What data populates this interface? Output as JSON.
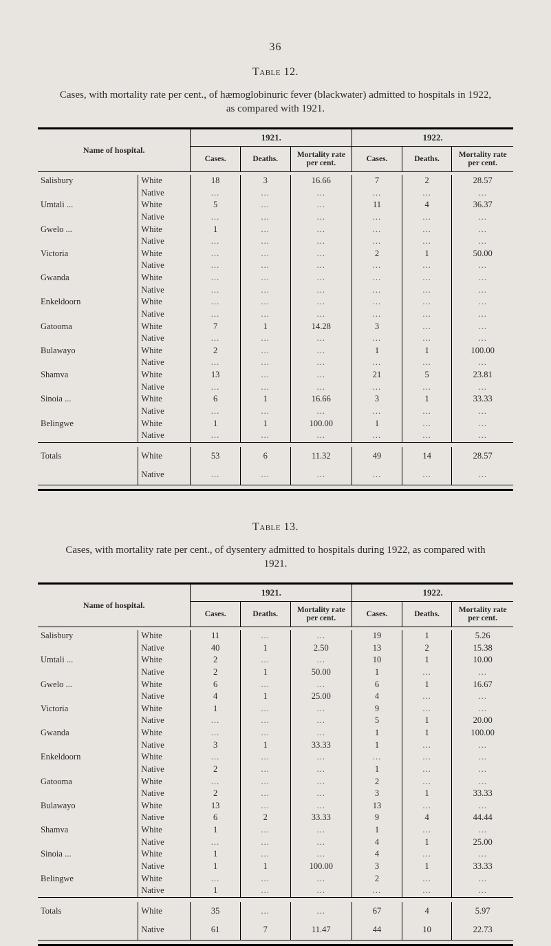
{
  "page_number": "36",
  "table12": {
    "label": "Table 12.",
    "caption": "Cases, with mortality rate per cent., of hæmoglobinuric fever (blackwater) admitted to hospitals in 1922, as compared with 1921.",
    "head": {
      "name": "Name of hospital.",
      "y1921": "1921.",
      "y1922": "1922.",
      "cases": "Cases.",
      "deaths": "Deaths.",
      "rate": "Mortality rate per cent."
    },
    "hospitals": [
      {
        "name": "Salisbury",
        "rows": [
          {
            "type": "White",
            "c1": "18",
            "d1": "3",
            "r1": "16.66",
            "c2": "7",
            "d2": "2",
            "r2": "28.57"
          },
          {
            "type": "Native",
            "c1": "...",
            "d1": "...",
            "r1": "...",
            "c2": "...",
            "d2": "...",
            "r2": "..."
          }
        ]
      },
      {
        "name": "Umtali ...",
        "rows": [
          {
            "type": "White",
            "c1": "5",
            "d1": "...",
            "r1": "...",
            "c2": "11",
            "d2": "4",
            "r2": "36.37"
          },
          {
            "type": "Native",
            "c1": "...",
            "d1": "...",
            "r1": "...",
            "c2": "...",
            "d2": "...",
            "r2": "..."
          }
        ]
      },
      {
        "name": "Gwelo ...",
        "rows": [
          {
            "type": "White",
            "c1": "1",
            "d1": "...",
            "r1": "...",
            "c2": "...",
            "d2": "...",
            "r2": "..."
          },
          {
            "type": "Native",
            "c1": "...",
            "d1": "...",
            "r1": "...",
            "c2": "...",
            "d2": "...",
            "r2": "..."
          }
        ]
      },
      {
        "name": "Victoria",
        "rows": [
          {
            "type": "White",
            "c1": "...",
            "d1": "...",
            "r1": "...",
            "c2": "2",
            "d2": "1",
            "r2": "50.00"
          },
          {
            "type": "Native",
            "c1": "...",
            "d1": "...",
            "r1": "...",
            "c2": "...",
            "d2": "...",
            "r2": "..."
          }
        ]
      },
      {
        "name": "Gwanda",
        "rows": [
          {
            "type": "White",
            "c1": "...",
            "d1": "...",
            "r1": "...",
            "c2": "...",
            "d2": "...",
            "r2": "..."
          },
          {
            "type": "Native",
            "c1": "...",
            "d1": "...",
            "r1": "...",
            "c2": "...",
            "d2": "...",
            "r2": "..."
          }
        ]
      },
      {
        "name": "Enkeldoorn",
        "rows": [
          {
            "type": "White",
            "c1": "...",
            "d1": "...",
            "r1": "...",
            "c2": "...",
            "d2": "...",
            "r2": "..."
          },
          {
            "type": "Native",
            "c1": "...",
            "d1": "...",
            "r1": "...",
            "c2": "...",
            "d2": "...",
            "r2": "..."
          }
        ]
      },
      {
        "name": "Gatooma",
        "rows": [
          {
            "type": "White",
            "c1": "7",
            "d1": "1",
            "r1": "14.28",
            "c2": "3",
            "d2": "...",
            "r2": "..."
          },
          {
            "type": "Native",
            "c1": "...",
            "d1": "...",
            "r1": "...",
            "c2": "...",
            "d2": "...",
            "r2": "..."
          }
        ]
      },
      {
        "name": "Bulawayo",
        "rows": [
          {
            "type": "White",
            "c1": "2",
            "d1": "...",
            "r1": "...",
            "c2": "1",
            "d2": "1",
            "r2": "100.00"
          },
          {
            "type": "Native",
            "c1": "...",
            "d1": "...",
            "r1": "...",
            "c2": "...",
            "d2": "...",
            "r2": "..."
          }
        ]
      },
      {
        "name": "Shamva",
        "rows": [
          {
            "type": "White",
            "c1": "13",
            "d1": "...",
            "r1": "...",
            "c2": "21",
            "d2": "5",
            "r2": "23.81"
          },
          {
            "type": "Native",
            "c1": "...",
            "d1": "...",
            "r1": "...",
            "c2": "...",
            "d2": "...",
            "r2": "..."
          }
        ]
      },
      {
        "name": "Sinoia ...",
        "rows": [
          {
            "type": "White",
            "c1": "6",
            "d1": "1",
            "r1": "16.66",
            "c2": "3",
            "d2": "1",
            "r2": "33.33"
          },
          {
            "type": "Native",
            "c1": "...",
            "d1": "...",
            "r1": "...",
            "c2": "...",
            "d2": "...",
            "r2": "..."
          }
        ]
      },
      {
        "name": "Belingwe",
        "rows": [
          {
            "type": "White",
            "c1": "1",
            "d1": "1",
            "r1": "100.00",
            "c2": "1",
            "d2": "...",
            "r2": "..."
          },
          {
            "type": "Native",
            "c1": "...",
            "d1": "...",
            "r1": "...",
            "c2": "...",
            "d2": "...",
            "r2": "..."
          }
        ]
      }
    ],
    "totals": {
      "label": "Totals",
      "rows": [
        {
          "type": "White",
          "c1": "53",
          "d1": "6",
          "r1": "11.32",
          "c2": "49",
          "d2": "14",
          "r2": "28.57"
        },
        {
          "type": "Native",
          "c1": "...",
          "d1": "...",
          "r1": "...",
          "c2": "...",
          "d2": "...",
          "r2": "..."
        }
      ]
    }
  },
  "table13": {
    "label": "Table 13.",
    "caption": "Cases, with mortality rate per cent., of dysentery admitted to hospitals during 1922, as compared with 1921.",
    "head": {
      "name": "Name of hospital.",
      "y1921": "1921.",
      "y1922": "1922.",
      "cases": "Cases.",
      "deaths": "Deaths.",
      "rate": "Mortality rate per cent."
    },
    "hospitals": [
      {
        "name": "Salisbury",
        "rows": [
          {
            "type": "White",
            "c1": "11",
            "d1": "...",
            "r1": "...",
            "c2": "19",
            "d2": "1",
            "r2": "5.26"
          },
          {
            "type": "Native",
            "c1": "40",
            "d1": "1",
            "r1": "2.50",
            "c2": "13",
            "d2": "2",
            "r2": "15.38"
          }
        ]
      },
      {
        "name": "Umtali ...",
        "rows": [
          {
            "type": "White",
            "c1": "2",
            "d1": "...",
            "r1": "...",
            "c2": "10",
            "d2": "1",
            "r2": "10.00"
          },
          {
            "type": "Native",
            "c1": "2",
            "d1": "1",
            "r1": "50.00",
            "c2": "1",
            "d2": "...",
            "r2": "..."
          }
        ]
      },
      {
        "name": "Gwelo ...",
        "rows": [
          {
            "type": "White",
            "c1": "6",
            "d1": "...",
            "r1": "...",
            "c2": "6",
            "d2": "1",
            "r2": "16.67"
          },
          {
            "type": "Native",
            "c1": "4",
            "d1": "1",
            "r1": "25.00",
            "c2": "4",
            "d2": "...",
            "r2": "..."
          }
        ]
      },
      {
        "name": "Victoria",
        "rows": [
          {
            "type": "White",
            "c1": "1",
            "d1": "...",
            "r1": "...",
            "c2": "9",
            "d2": "...",
            "r2": "..."
          },
          {
            "type": "Native",
            "c1": "...",
            "d1": "...",
            "r1": "...",
            "c2": "5",
            "d2": "1",
            "r2": "20.00"
          }
        ]
      },
      {
        "name": "Gwanda",
        "rows": [
          {
            "type": "White",
            "c1": "...",
            "d1": "...",
            "r1": "...",
            "c2": "1",
            "d2": "1",
            "r2": "100.00"
          },
          {
            "type": "Native",
            "c1": "3",
            "d1": "1",
            "r1": "33.33",
            "c2": "1",
            "d2": "...",
            "r2": "..."
          }
        ]
      },
      {
        "name": "Enkeldoorn",
        "rows": [
          {
            "type": "White",
            "c1": "...",
            "d1": "...",
            "r1": "...",
            "c2": "...",
            "d2": "...",
            "r2": "..."
          },
          {
            "type": "Native",
            "c1": "2",
            "d1": "...",
            "r1": "...",
            "c2": "1",
            "d2": "...",
            "r2": "..."
          }
        ]
      },
      {
        "name": "Gatooma",
        "rows": [
          {
            "type": "White",
            "c1": "...",
            "d1": "...",
            "r1": "...",
            "c2": "2",
            "d2": "...",
            "r2": "..."
          },
          {
            "type": "Native",
            "c1": "2",
            "d1": "...",
            "r1": "...",
            "c2": "3",
            "d2": "1",
            "r2": "33.33"
          }
        ]
      },
      {
        "name": "Bulawayo",
        "rows": [
          {
            "type": "White",
            "c1": "13",
            "d1": "...",
            "r1": "...",
            "c2": "13",
            "d2": "...",
            "r2": "..."
          },
          {
            "type": "Native",
            "c1": "6",
            "d1": "2",
            "r1": "33.33",
            "c2": "9",
            "d2": "4",
            "r2": "44.44"
          }
        ]
      },
      {
        "name": "Shamva",
        "rows": [
          {
            "type": "White",
            "c1": "1",
            "d1": "...",
            "r1": "...",
            "c2": "1",
            "d2": "...",
            "r2": "..."
          },
          {
            "type": "Native",
            "c1": "...",
            "d1": "...",
            "r1": "...",
            "c2": "4",
            "d2": "1",
            "r2": "25.00"
          }
        ]
      },
      {
        "name": "Sinoia ...",
        "rows": [
          {
            "type": "White",
            "c1": "1",
            "d1": "...",
            "r1": "...",
            "c2": "4",
            "d2": "...",
            "r2": "..."
          },
          {
            "type": "Native",
            "c1": "1",
            "d1": "1",
            "r1": "100.00",
            "c2": "3",
            "d2": "1",
            "r2": "33.33"
          }
        ]
      },
      {
        "name": "Belingwe",
        "rows": [
          {
            "type": "White",
            "c1": "...",
            "d1": "...",
            "r1": "...",
            "c2": "2",
            "d2": "...",
            "r2": "..."
          },
          {
            "type": "Native",
            "c1": "1",
            "d1": "...",
            "r1": "...",
            "c2": "...",
            "d2": "...",
            "r2": "..."
          }
        ]
      }
    ],
    "totals": {
      "label": "Totals",
      "rows": [
        {
          "type": "White",
          "c1": "35",
          "d1": "...",
          "r1": "...",
          "c2": "67",
          "d2": "4",
          "r2": "5.97"
        },
        {
          "type": "Native",
          "c1": "61",
          "d1": "7",
          "r1": "11.47",
          "c2": "44",
          "d2": "10",
          "r2": "22.73"
        }
      ]
    }
  }
}
